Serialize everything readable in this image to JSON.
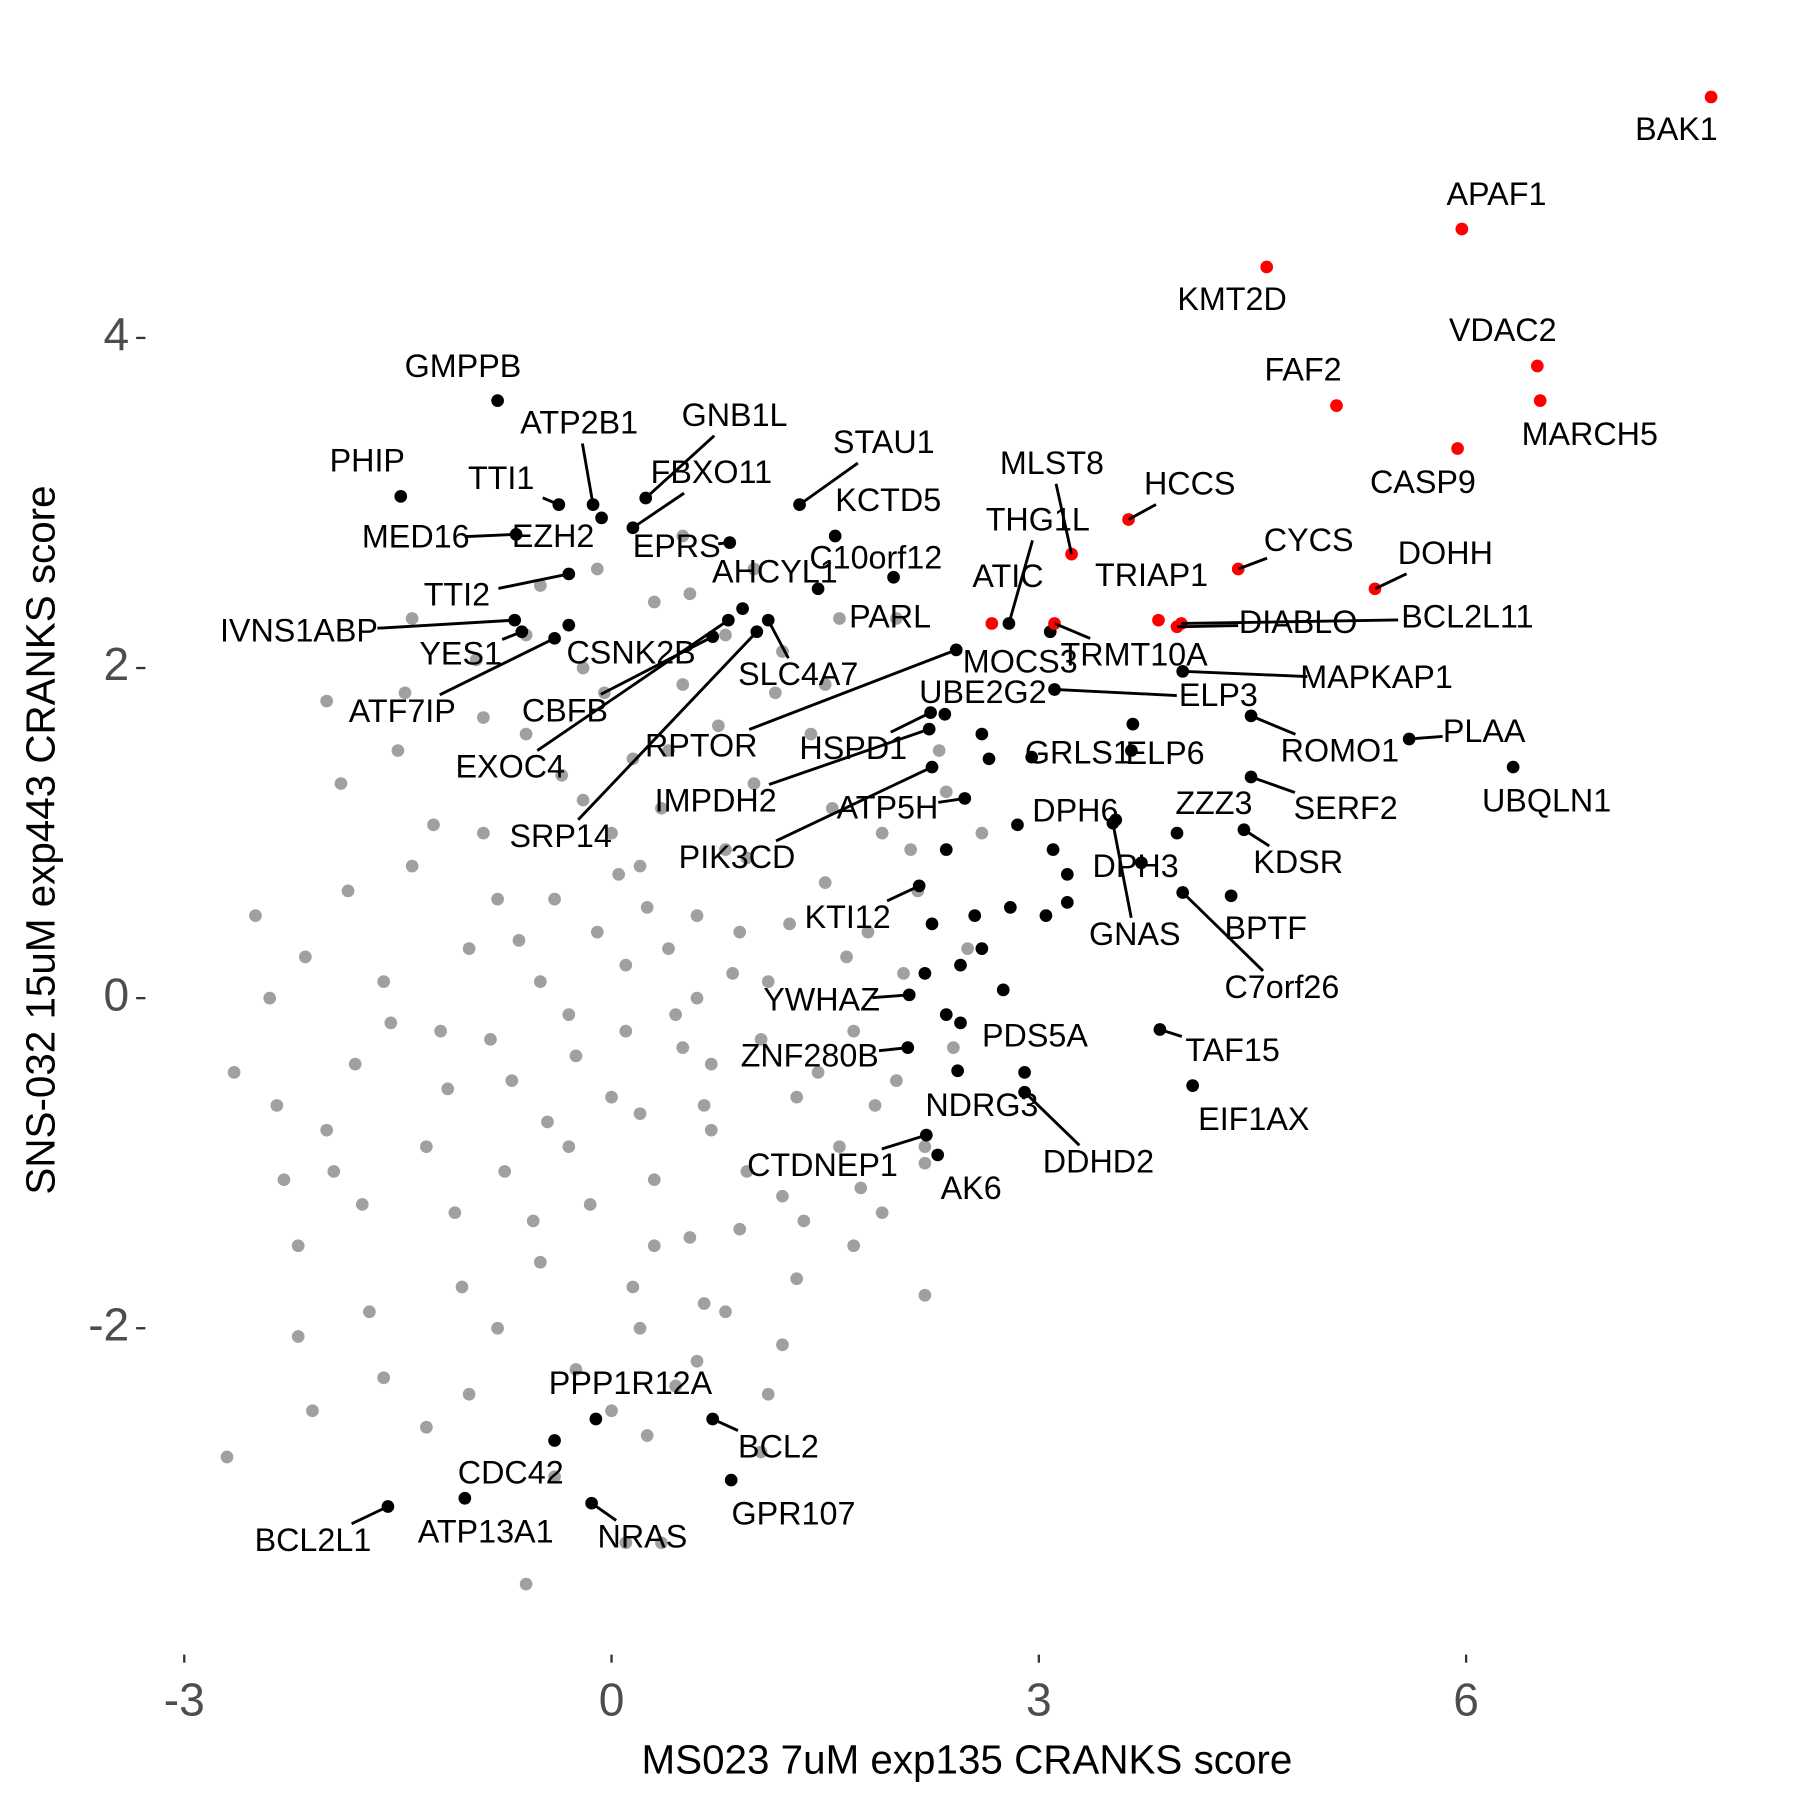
{
  "chart_data": {
    "type": "scatter",
    "x_label": "MS023 7uM exp135 CRANKS score",
    "y_label": "SNS-032 15uM exp443 CRANKS score",
    "xlim": [
      -3.2,
      7.85
    ],
    "ylim": [
      -3.6,
      5.6
    ],
    "xticks": [
      -3,
      0,
      3,
      6
    ],
    "yticks": [
      -2,
      0,
      2,
      4
    ],
    "series": [
      {
        "color": "#a0a0a0",
        "x": [
          0.1,
          0.5,
          -0.4,
          0.8,
          -0.7,
          0.3,
          1.1,
          -1.0,
          0.0,
          0.6,
          -0.2,
          1.3,
          -1.3,
          0.9,
          -0.5,
          0.4,
          1.5,
          -1.6,
          0.2,
          1.0,
          -0.9,
          1.7,
          -1.8,
          0.7,
          -0.3,
          0.2,
          1.2,
          -1.1,
          -0.6,
          0.5,
          1.8,
          -2.0,
          0.0,
          1.4,
          -1.4,
          0.8,
          -0.8,
          0.3,
          1.6,
          -1.2,
          0.1,
          0.6,
          -0.1,
          0.4,
          -0.5,
          0.9,
          -0.3,
          0.7,
          0.2,
          -0.8,
          1.9,
          2.0,
          -2.2,
          -2.4,
          -2.65,
          -2.7,
          -2.2,
          2.2,
          2.1,
          -1.9,
          0.8,
          0.3,
          -0.2,
          1.2,
          -0.9,
          -1.5,
          1.5,
          2.3,
          1.9,
          -1.7,
          -1.0,
          0.0,
          0.6,
          1.3,
          -0.4,
          0.1,
          -0.6,
          0.35,
          1.1,
          -1.3,
          2.5,
          2.4,
          2.6,
          2.2,
          1.7,
          -2.5,
          -2.3,
          -2.0,
          -1.4,
          -0.5,
          1.0,
          0.5,
          -0.1,
          -0.6,
          1.6,
          2.0,
          2.2,
          1.2,
          -1.6,
          -2.1,
          0.45,
          0.25,
          -0.25,
          0.65,
          0.05,
          -0.45,
          1.05,
          -0.65,
          0.85,
          -0.15,
          0.35,
          1.25,
          -1.15,
          0.55,
          -0.35,
          1.45,
          -1.25,
          0.15,
          -0.75,
          0.95,
          1.65,
          -1.55,
          0.75,
          -0.05,
          1.15,
          -1.05,
          0.45,
          -0.25,
          1.35,
          -1.85,
          1.85,
          -1.95,
          2.05,
          -2.15,
          0.95,
          -0.85,
          0.15,
          0.65,
          -0.55,
          1.55,
          -1.45,
          2.15,
          -2.35,
          1.75,
          0.25,
          -0.95,
          0.55,
          2.35,
          -1.75,
          1.05
        ],
        "y": [
          0.2,
          -0.3,
          0.6,
          0.9,
          -0.5,
          -1.1,
          0.1,
          0.3,
          -0.6,
          0.5,
          1.2,
          -0.6,
          -0.9,
          -1.4,
          -1.6,
          1.5,
          0.7,
          0.1,
          -2.0,
          1.3,
          1.0,
          -0.2,
          -0.4,
          -0.8,
          -0.1,
          0.8,
          -1.2,
          -1.3,
          1.6,
          1.9,
          0.4,
          -0.8,
          1.0,
          1.6,
          0.8,
          -1.9,
          -2.0,
          -1.5,
          -0.9,
          -0.2,
          -0.2,
          0.0,
          0.4,
          0.3,
          0.1,
          0.4,
          -0.9,
          -0.4,
          -0.7,
          0.6,
          1.0,
          -0.5,
          -1.5,
          0.0,
          -0.45,
          -2.78,
          -2.05,
          -1.8,
          0.9,
          1.3,
          2.2,
          2.4,
          2.0,
          2.1,
          1.7,
          1.5,
          1.9,
          1.5,
          -1.3,
          -1.9,
          -2.4,
          -2.5,
          -2.2,
          -1.7,
          -2.9,
          -3.3,
          -3.55,
          -3.3,
          -2.4,
          -2.6,
          0.3,
          -0.3,
          1.0,
          -1.0,
          -1.5,
          0.5,
          -1.1,
          1.8,
          2.3,
          2.5,
          2.6,
          2.8,
          2.6,
          2.2,
          2.3,
          2.3,
          -0.9,
          -2.1,
          -2.3,
          -2.5,
          -0.1,
          0.55,
          -0.35,
          -0.65,
          0.75,
          -0.75,
          -0.25,
          0.35,
          0.15,
          -1.25,
          1.15,
          0.45,
          -0.55,
          -1.45,
          1.35,
          -0.45,
          1.05,
          -1.75,
          -1.05,
          -1.05,
          0.25,
          -0.15,
          1.65,
          1.85,
          1.85,
          -1.75,
          -2.35,
          -2.25,
          -1.35,
          0.65,
          -0.65,
          -1.05,
          0.15,
          0.25,
          0.85,
          -0.25,
          1.45,
          -1.85,
          -1.35,
          1.15,
          1.85,
          0.65,
          -0.65,
          -1.15,
          -2.65,
          2.05,
          2.45,
          1.25,
          -1.25,
          -2.75
        ]
      },
      {
        "color": "#000000",
        "labels": [
          "GMPPB",
          "PHIP",
          "MED16",
          "TTI1",
          "EZH2",
          "ATP2B1",
          "GNB1L",
          "FBXO11",
          "STAU1",
          "KCTD5",
          "EPRS",
          "C10orf12",
          "AHCYL1",
          "PARL",
          "TTI2",
          "IVNS1ABP",
          "YES1",
          "CSNK2B",
          "ATF7IP",
          "CBFB",
          "EXOC4",
          "SLC4A7",
          "RPTOR",
          "SRP14",
          "UBE2G2",
          "HSPD1",
          "IMPDH2",
          "ATP5H",
          "PIK3CD",
          "KTI12",
          "YWHAZ",
          "ZNF280B",
          "CTDNEP1",
          "AK6",
          "NDRG3",
          "PDS5A",
          "DDHD2",
          "TAF15",
          "EIF1AX",
          "GRLS1",
          "ELP6",
          "ELP3",
          "MAPKAP1",
          "ROMO1",
          "PLAA",
          "UBQLN1",
          "SERF2",
          "ZZZ3",
          "KDSR",
          "DPH6",
          "DPH3",
          "GNAS",
          "BPTF",
          "C7orf26",
          "PPP1R12A",
          "BCL2",
          "CDC42",
          "GPR107",
          "BCL2L1",
          "ATP13A1",
          "NRAS",
          "THG1L",
          "MOCS3"
        ],
        "x": [
          -0.8,
          -1.48,
          -0.67,
          -0.37,
          -0.07,
          -0.13,
          0.24,
          0.15,
          1.32,
          1.57,
          0.83,
          1.45,
          0.92,
          1.98,
          -0.3,
          -0.68,
          -0.63,
          -0.3,
          -0.4,
          0.71,
          0.82,
          1.1,
          2.42,
          1.02,
          2.34,
          2.24,
          2.23,
          2.48,
          2.25,
          2.16,
          2.09,
          2.08,
          2.21,
          2.29,
          2.43,
          2.9,
          2.9,
          3.85,
          4.08,
          2.95,
          3.66,
          3.11,
          4.01,
          4.49,
          5.6,
          6.33,
          4.49,
          3.97,
          4.44,
          3.54,
          3.72,
          3.52,
          4.35,
          4.01,
          -0.11,
          0.71,
          -0.4,
          0.84,
          -1.57,
          -1.03,
          -0.14,
          2.79,
          3.08
        ],
        "y": [
          3.62,
          3.04,
          2.81,
          2.99,
          2.91,
          2.99,
          3.03,
          2.85,
          2.99,
          2.8,
          2.76,
          2.48,
          2.36,
          2.55,
          2.57,
          2.29,
          2.22,
          2.26,
          2.18,
          2.19,
          2.29,
          2.29,
          2.11,
          2.22,
          1.72,
          1.73,
          1.63,
          1.21,
          1.4,
          0.68,
          0.02,
          -0.3,
          -0.83,
          -0.95,
          -0.44,
          -0.45,
          -0.57,
          -0.19,
          -0.53,
          1.46,
          1.66,
          1.87,
          1.98,
          1.71,
          1.57,
          1.4,
          1.34,
          1.0,
          1.02,
          1.08,
          0.82,
          1.06,
          0.62,
          0.64,
          -2.55,
          -2.55,
          -2.68,
          -2.92,
          -3.08,
          -3.03,
          -3.06,
          2.27,
          2.22
        ]
      },
      {
        "color": "#ff0000",
        "labels": [
          "BAK1",
          "APAF1",
          "KMT2D",
          "VDAC2",
          "FAF2",
          "MARCH5",
          "CASP9",
          "HCCS",
          "CYCS",
          "DOHH",
          "ATIC",
          "MLST8",
          "TRIAP1",
          "DIABLO",
          "BCL2L11",
          "TRMT10A"
        ],
        "x": [
          7.72,
          5.97,
          4.6,
          6.5,
          5.09,
          6.52,
          5.94,
          3.63,
          4.4,
          5.36,
          2.67,
          3.23,
          3.84,
          3.97,
          4.0,
          3.11
        ],
        "y": [
          5.46,
          4.66,
          4.43,
          3.83,
          3.59,
          3.62,
          3.33,
          2.9,
          2.6,
          2.48,
          2.27,
          2.69,
          2.29,
          2.25,
          2.27,
          2.27
        ]
      },
      {
        "color": "#000000",
        "x": [
          2.6,
          2.65,
          2.35,
          2.25,
          2.55,
          2.6,
          2.75,
          2.45,
          2.2,
          3.1,
          3.2,
          2.85,
          2.8,
          3.2,
          3.05,
          3.65,
          2.45,
          2.35
        ],
        "y": [
          1.6,
          1.45,
          0.9,
          0.45,
          0.5,
          0.3,
          0.05,
          0.2,
          0.15,
          0.9,
          0.75,
          1.05,
          0.55,
          0.58,
          0.5,
          1.5,
          -0.15,
          -0.1
        ]
      }
    ]
  }
}
